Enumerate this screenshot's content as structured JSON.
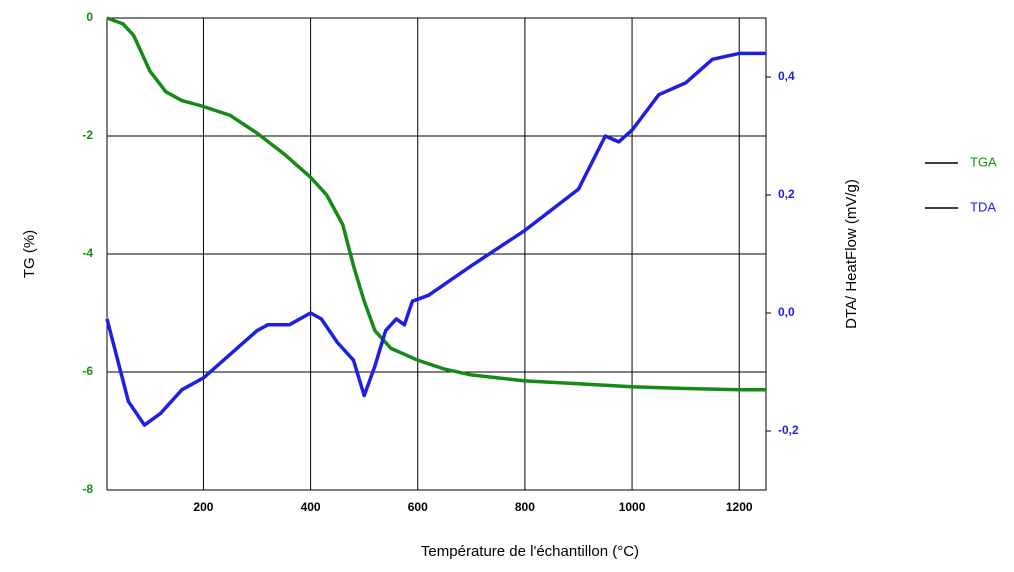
{
  "chart_data": {
    "type": "line",
    "xlabel": "Température de l'échantillon (°C)",
    "ylabel": "TG (%)",
    "y2label": "DTA/ HeatFlow (mV/g)",
    "xlim": [
      20,
      1250
    ],
    "xticks": [
      200,
      400,
      600,
      800,
      1000,
      1200
    ],
    "ylim": [
      -8,
      0
    ],
    "yticks": [
      0,
      -2,
      -4,
      -6,
      -8
    ],
    "y2lim": [
      -0.3,
      0.5
    ],
    "y2ticks": [
      {
        "value": 0.4,
        "label": "0,4"
      },
      {
        "value": 0.2,
        "label": "0,2"
      },
      {
        "value": 0.0,
        "label": "0,0"
      },
      {
        "value": -0.2,
        "label": "-0,2"
      }
    ],
    "grid": true,
    "legend": "right",
    "series": [
      {
        "name": "TGA",
        "color": "#168a16",
        "axis": "y",
        "x": [
          20,
          50,
          70,
          100,
          130,
          160,
          200,
          250,
          300,
          350,
          400,
          430,
          460,
          480,
          500,
          520,
          550,
          600,
          650,
          700,
          800,
          900,
          1000,
          1100,
          1200,
          1250
        ],
        "values": [
          0,
          -0.1,
          -0.3,
          -0.9,
          -1.25,
          -1.4,
          -1.5,
          -1.65,
          -1.95,
          -2.3,
          -2.7,
          -3.0,
          -3.5,
          -4.2,
          -4.8,
          -5.3,
          -5.6,
          -5.8,
          -5.95,
          -6.05,
          -6.15,
          -6.2,
          -6.25,
          -6.28,
          -6.3,
          -6.3
        ]
      },
      {
        "name": "TDA",
        "color": "#1e1ee6",
        "axis": "y2",
        "x": [
          20,
          40,
          60,
          90,
          120,
          160,
          200,
          250,
          300,
          320,
          360,
          400,
          420,
          450,
          480,
          500,
          520,
          540,
          560,
          575,
          590,
          620,
          700,
          800,
          900,
          950,
          975,
          1000,
          1050,
          1100,
          1150,
          1200,
          1250
        ],
        "values": [
          -0.01,
          -0.08,
          -0.15,
          -0.19,
          -0.17,
          -0.13,
          -0.11,
          -0.07,
          -0.03,
          -0.02,
          -0.02,
          0.0,
          -0.01,
          -0.05,
          -0.08,
          -0.14,
          -0.09,
          -0.03,
          -0.01,
          -0.02,
          0.02,
          0.03,
          0.08,
          0.14,
          0.21,
          0.3,
          0.29,
          0.31,
          0.37,
          0.39,
          0.43,
          0.44,
          0.44
        ]
      }
    ]
  }
}
